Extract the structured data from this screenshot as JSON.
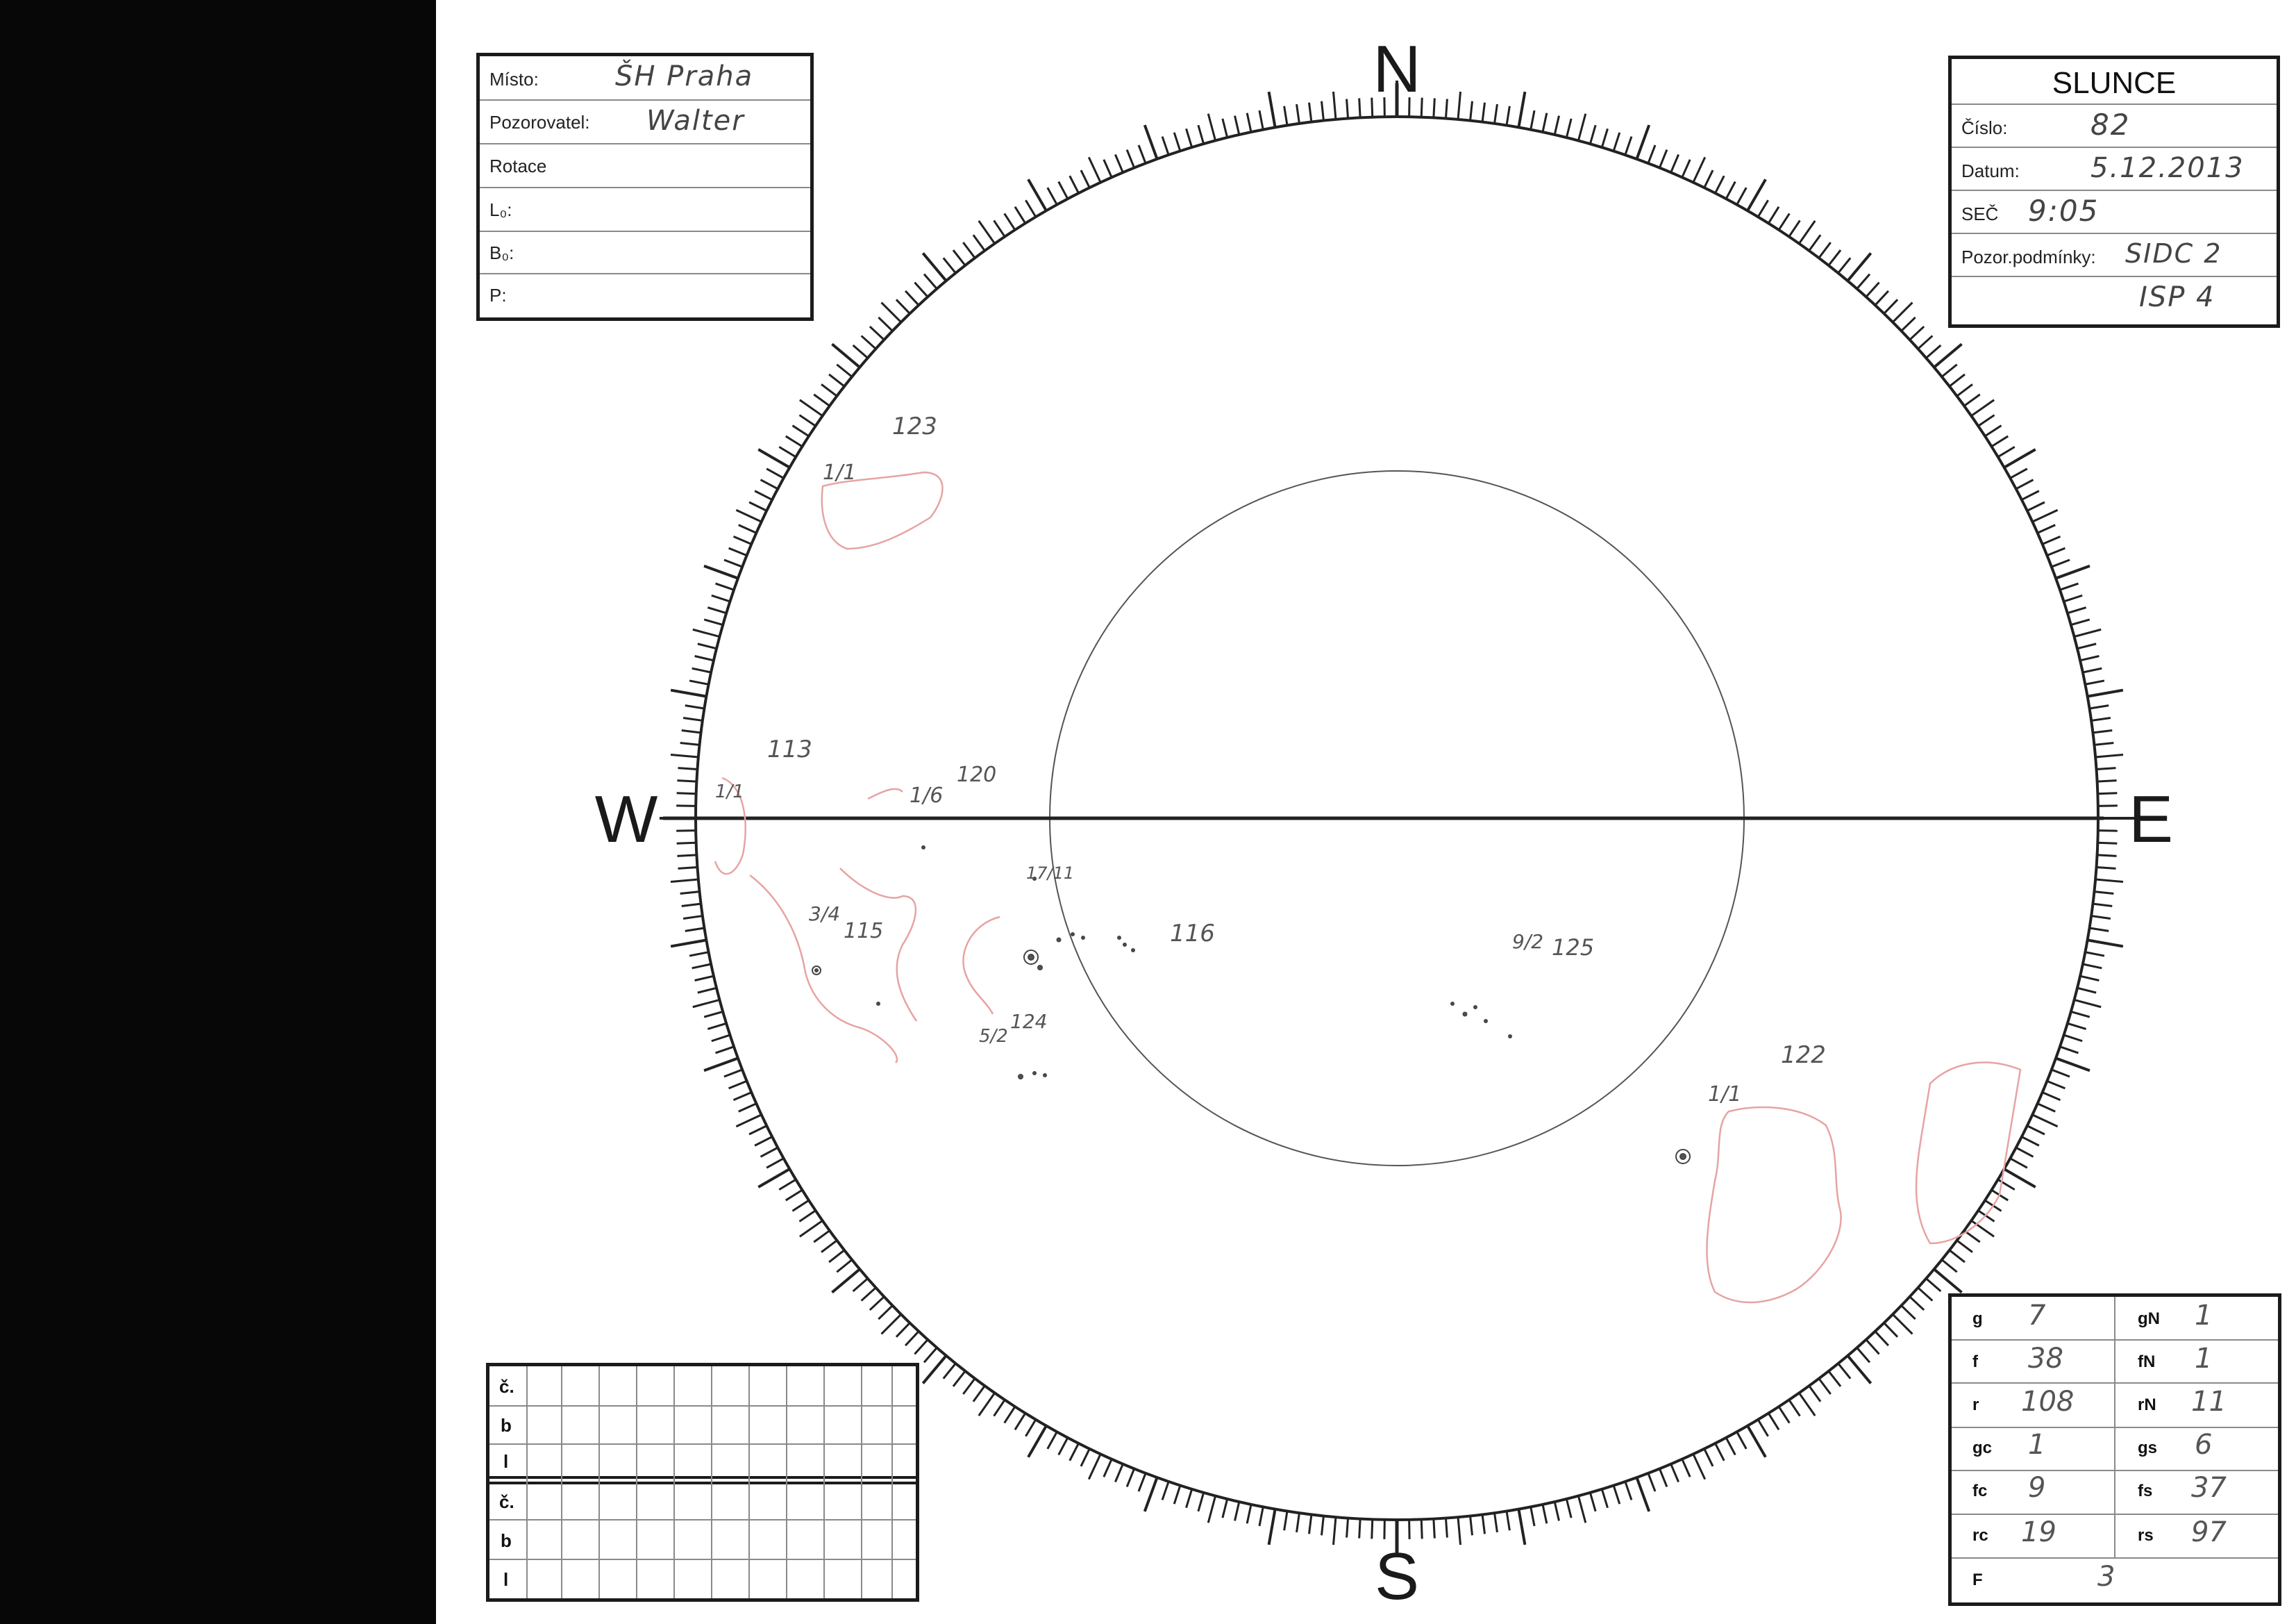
{
  "compass": {
    "north": "N",
    "south": "S",
    "east": "E",
    "west": "W"
  },
  "info_box": {
    "place_label": "Místo:",
    "place_value": "ŠH Praha",
    "observer_label": "Pozorovatel:",
    "observer_value": "Walter",
    "rotation_label": "Rotace",
    "l0_label": "L₀:",
    "b0_label": "B₀:",
    "p_label": "P:"
  },
  "slunce_box": {
    "title": "SLUNCE",
    "number_label": "Číslo:",
    "number_value": "82",
    "date_label": "Datum:",
    "date_value": "5.12.2013",
    "time_label": "SEČ",
    "time_value": "9:05",
    "conditions_label": "Pozor.podmínky:",
    "conditions_value": "SIDC 2",
    "conditions_value2": "ISP 4"
  },
  "spot_grid": {
    "labels": [
      "č.",
      "b",
      "l",
      "č.",
      "b",
      "l"
    ]
  },
  "stats": {
    "g_label": "g",
    "g_value": "7",
    "gN_label": "gN",
    "gN_value": "1",
    "f_label": "f",
    "f_value": "38",
    "fN_label": "fN",
    "fN_value": "1",
    "r_label": "r",
    "r_value": "108",
    "rN_label": "rN",
    "rN_value": "11",
    "gc_label": "gc",
    "gc_value": "1",
    "gs_label": "gs",
    "gs_value": "6",
    "fc_label": "fc",
    "fc_value": "9",
    "fs_label": "fs",
    "fs_value": "37",
    "rc_label": "rc",
    "rc_value": "19",
    "rs_label": "rs",
    "rs_value": "97",
    "F_label": "F",
    "F_value": "3"
  },
  "annotations": {
    "a123": "123",
    "a11a": "1/1",
    "a113": "113",
    "a11b": "1/1",
    "a120": "120",
    "a1_6": "1/6",
    "a3_4": "3/4",
    "a115": "115",
    "a17": "17/11",
    "a116": "116",
    "a9_2": "9/2",
    "a125": "125",
    "a5_2": "5/2",
    "a124": "124",
    "a122": "122",
    "a11c": "1/1"
  }
}
